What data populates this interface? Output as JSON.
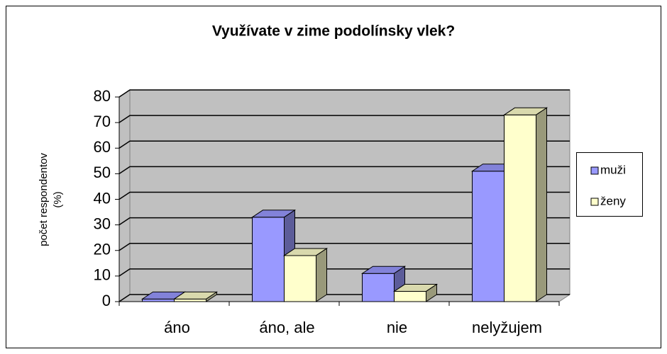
{
  "chart_data": {
    "type": "bar3d",
    "title": "Využívate v zime podolínsky vlek?",
    "ylabel": [
      "počet respondentov",
      "(%)"
    ],
    "categories": [
      "áno",
      "áno, ale",
      "nie",
      "nelyžujem"
    ],
    "series": [
      {
        "name": "muži",
        "color": "#9999ff",
        "values": [
          1,
          33,
          11,
          51
        ]
      },
      {
        "name": "ženy",
        "color": "#ffffcc",
        "values": [
          1,
          18,
          4,
          73
        ]
      }
    ],
    "ylim": [
      0,
      80
    ],
    "yticks": [
      0,
      10,
      20,
      30,
      40,
      50,
      60,
      70,
      80
    ],
    "grid": true,
    "legend": "right"
  }
}
